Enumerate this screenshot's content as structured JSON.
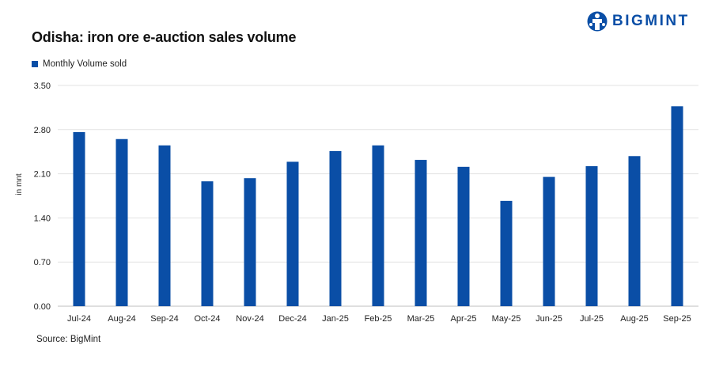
{
  "brand": {
    "name": "BIGMINT",
    "accent": "#0a4ea6"
  },
  "source": "Source: BigMint",
  "chart_data": {
    "type": "bar",
    "title": "Odisha: iron ore e-auction sales volume",
    "ylabel": "in mnt",
    "xlabel": "",
    "ylim": [
      0,
      3.5
    ],
    "yticks": [
      "0.00",
      "0.70",
      "1.40",
      "2.10",
      "2.80",
      "3.50"
    ],
    "grid": true,
    "legend_position": "top-left",
    "categories": [
      "Jul-24",
      "Aug-24",
      "Sep-24",
      "Oct-24",
      "Nov-24",
      "Dec-24",
      "Jan-25",
      "Feb-25",
      "Mar-25",
      "Apr-25",
      "May-25",
      "Jun-25",
      "Jul-25",
      "Aug-25",
      "Sep-25"
    ],
    "series": [
      {
        "name": "Monthly Volume sold",
        "color": "#0a4ea6",
        "values": [
          2.76,
          2.65,
          2.55,
          1.98,
          2.03,
          2.29,
          2.46,
          2.55,
          2.32,
          2.21,
          1.67,
          2.05,
          2.22,
          2.38,
          3.17
        ]
      }
    ]
  }
}
